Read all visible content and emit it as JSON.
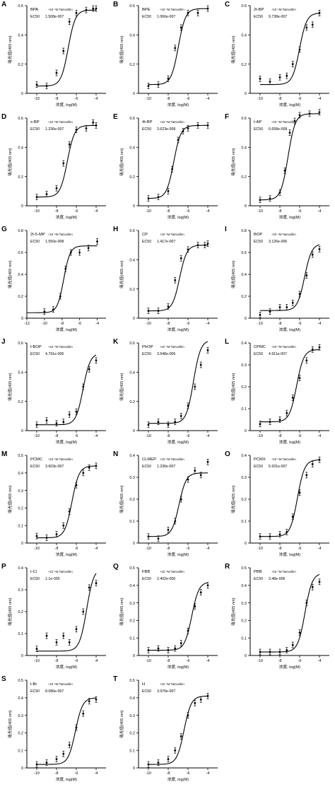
{
  "panel_tag": "+10⁻⁵M Tamoxifen",
  "ylabel": "吸光值(405 nm)",
  "xlabel": "浓度, log(M)",
  "ec50_label": "EC50",
  "chart_data": [
    {
      "id": "A",
      "type": "scatter",
      "name": "BPA",
      "ec50": "1.508e-007",
      "xlim": [
        -11,
        -3
      ],
      "ylim": [
        0,
        0.6
      ],
      "xticks": [
        -10,
        -8,
        -6,
        -4
      ],
      "yticks": [
        0,
        0.2,
        0.4,
        0.6
      ],
      "bottom": 0.05,
      "top": 0.57,
      "x": [
        -10,
        -9,
        -8,
        -7.3,
        -6.7,
        -6,
        -5,
        -4.3,
        -4
      ],
      "y": [
        0.06,
        0.05,
        0.14,
        0.29,
        0.49,
        0.55,
        0.57,
        0.58,
        0.58
      ]
    },
    {
      "id": "B",
      "type": "scatter",
      "name": "BPE",
      "ec50": "1.066e-007",
      "xlim": [
        -11,
        -3
      ],
      "ylim": [
        0,
        0.6
      ],
      "xticks": [
        -10,
        -8,
        -6,
        -4
      ],
      "yticks": [
        0,
        0.2,
        0.4,
        0.6
      ],
      "bottom": 0.06,
      "top": 0.58,
      "x": [
        -10,
        -9,
        -8,
        -7.3,
        -6.7,
        -6,
        -5,
        -4
      ],
      "y": [
        0.05,
        0.06,
        0.1,
        0.31,
        0.45,
        0.55,
        0.55,
        0.58
      ]
    },
    {
      "id": "C",
      "type": "scatter",
      "name": "2t-BP",
      "ec50": "9.738e-007",
      "xlim": [
        -11,
        -3
      ],
      "ylim": [
        0,
        0.6
      ],
      "xticks": [
        -10,
        -8,
        -6,
        -4
      ],
      "yticks": [
        0,
        0.2,
        0.4,
        0.6
      ],
      "bottom": 0.06,
      "top": 0.55,
      "x": [
        -10,
        -9,
        -8,
        -7.3,
        -6.7,
        -6,
        -5.3,
        -4.7,
        -4
      ],
      "y": [
        0.1,
        0.08,
        0.11,
        0.12,
        0.2,
        0.3,
        0.45,
        0.47,
        0.55
      ]
    },
    {
      "id": "D",
      "type": "scatter",
      "name": "s-BP",
      "ec50": "1.236e-007",
      "xlim": [
        -11,
        -3
      ],
      "ylim": [
        0,
        0.6
      ],
      "xticks": [
        -10,
        -8,
        -6,
        -4
      ],
      "yticks": [
        0,
        0.2,
        0.4,
        0.6
      ],
      "bottom": 0.06,
      "top": 0.55,
      "x": [
        -10,
        -9,
        -8,
        -7.3,
        -6.7,
        -6,
        -5,
        -4.3,
        -4
      ],
      "y": [
        0.06,
        0.08,
        0.12,
        0.29,
        0.42,
        0.52,
        0.53,
        0.57,
        0.55
      ]
    },
    {
      "id": "E",
      "type": "scatter",
      "name": "4t-BP",
      "ec50": "3.623e-008",
      "xlim": [
        -11,
        -3
      ],
      "ylim": [
        0,
        0.6
      ],
      "xticks": [
        -10,
        -8,
        -6,
        -4
      ],
      "yticks": [
        0,
        0.2,
        0.4,
        0.6
      ],
      "bottom": 0.05,
      "top": 0.55,
      "x": [
        -10,
        -9,
        -8,
        -7.6,
        -7,
        -6.5,
        -6,
        -5,
        -4
      ],
      "y": [
        0.05,
        0.06,
        0.1,
        0.25,
        0.45,
        0.51,
        0.53,
        0.55,
        0.55
      ]
    },
    {
      "id": "F",
      "type": "scatter",
      "name": "t-AP",
      "ec50": "6.658e-008",
      "xlim": [
        -11,
        -3
      ],
      "ylim": [
        0,
        0.6
      ],
      "xticks": [
        -10,
        -8,
        -6,
        -4
      ],
      "yticks": [
        0,
        0.2,
        0.4,
        0.6
      ],
      "bottom": 0.04,
      "top": 0.63,
      "x": [
        -10,
        -9,
        -8,
        -7.5,
        -7,
        -6.5,
        -6,
        -5,
        -4
      ],
      "y": [
        0.04,
        0.05,
        0.09,
        0.24,
        0.5,
        0.58,
        0.62,
        0.63,
        0.64
      ]
    },
    {
      "id": "G",
      "type": "scatter",
      "name": "2t-5-MP",
      "ec50": "1.550e-008",
      "xlim": [
        -12,
        -3
      ],
      "ylim": [
        0,
        0.8
      ],
      "xticks": [
        -12,
        -10,
        -8,
        -6,
        -4
      ],
      "yticks": [
        0,
        0.2,
        0.4,
        0.6,
        0.8
      ],
      "bottom": 0.05,
      "top": 0.66,
      "x": [
        -10,
        -9,
        -8.2,
        -7.6,
        -7,
        -6,
        -5,
        -4
      ],
      "y": [
        0.06,
        0.08,
        0.2,
        0.45,
        0.6,
        0.6,
        0.64,
        0.7
      ]
    },
    {
      "id": "H",
      "type": "scatter",
      "name": "CP",
      "ec50": "1.417e-007",
      "xlim": [
        -11,
        -3
      ],
      "ylim": [
        0,
        0.6
      ],
      "xticks": [
        -10,
        -8,
        -6,
        -4
      ],
      "yticks": [
        0,
        0.2,
        0.4,
        0.6
      ],
      "bottom": 0.05,
      "top": 0.5,
      "x": [
        -10,
        -9,
        -8,
        -7.3,
        -6.7,
        -6,
        -5,
        -4.3,
        -4
      ],
      "y": [
        0.05,
        0.05,
        0.08,
        0.26,
        0.41,
        0.47,
        0.5,
        0.5,
        0.51
      ]
    },
    {
      "id": "I",
      "type": "scatter",
      "name": "BOP",
      "ec50": "3.126e-006",
      "xlim": [
        -11,
        -3
      ],
      "ylim": [
        0,
        0.8
      ],
      "xticks": [
        -10,
        -8,
        -6,
        -4
      ],
      "yticks": [
        0,
        0.2,
        0.4,
        0.6,
        0.8
      ],
      "bottom": 0.07,
      "top": 0.68,
      "x": [
        -10,
        -9,
        -8,
        -7.3,
        -6.7,
        -6,
        -5.3,
        -4.7,
        -4
      ],
      "y": [
        0.03,
        0.06,
        0.1,
        0.1,
        0.14,
        0.22,
        0.39,
        0.58,
        0.63
      ]
    },
    {
      "id": "J",
      "type": "scatter",
      "name": "t-BOP",
      "ec50": "4.791e-006",
      "xlim": [
        -11,
        -3
      ],
      "ylim": [
        0,
        0.6
      ],
      "xticks": [
        -10,
        -8,
        -6,
        -4
      ],
      "yticks": [
        0,
        0.2,
        0.4,
        0.6
      ],
      "bottom": 0.04,
      "top": 0.53,
      "x": [
        -10,
        -9,
        -8,
        -7.3,
        -6.7,
        -6,
        -5.3,
        -4.7,
        -4
      ],
      "y": [
        0.04,
        0.07,
        0.05,
        0.06,
        0.11,
        0.13,
        0.3,
        0.42,
        0.48
      ]
    },
    {
      "id": "K",
      "type": "scatter",
      "name": "PhOP",
      "ec50": "3.548e-006",
      "xlim": [
        -11,
        -3
      ],
      "ylim": [
        0,
        0.6
      ],
      "xticks": [
        -10,
        -8,
        -6,
        -4
      ],
      "yticks": [
        0,
        0.2,
        0.4,
        0.6
      ],
      "bottom": 0.05,
      "top": 0.62,
      "x": [
        -10,
        -9,
        -8,
        -7.3,
        -6.7,
        -6,
        -5.3,
        -4.7,
        -4
      ],
      "y": [
        0.04,
        0.06,
        0.04,
        0.06,
        0.1,
        0.17,
        0.3,
        0.45,
        0.55
      ]
    },
    {
      "id": "L",
      "type": "scatter",
      "name": "CPMC",
      "ec50": "4.911e-007",
      "xlim": [
        -11,
        -3
      ],
      "ylim": [
        0,
        0.4
      ],
      "xticks": [
        -10,
        -8,
        -6,
        -4
      ],
      "yticks": [
        0,
        0.1,
        0.2,
        0.3,
        0.4
      ],
      "bottom": 0.04,
      "top": 0.37,
      "x": [
        -10,
        -9,
        -8,
        -7.3,
        -6.7,
        -6,
        -5.3,
        -4.7,
        -4
      ],
      "y": [
        0.03,
        0.04,
        0.05,
        0.08,
        0.15,
        0.24,
        0.32,
        0.37,
        0.38
      ]
    },
    {
      "id": "M",
      "type": "scatter",
      "name": "PCMC",
      "ec50": "3.603e-007",
      "xlim": [
        -11,
        -3
      ],
      "ylim": [
        0,
        0.5
      ],
      "xticks": [
        -10,
        -8,
        -6,
        -4
      ],
      "yticks": [
        0,
        0.1,
        0.2,
        0.3,
        0.4,
        0.5
      ],
      "bottom": 0.03,
      "top": 0.44,
      "x": [
        -10,
        -9,
        -8,
        -7.3,
        -6.7,
        -6,
        -5.3,
        -4.7,
        -4
      ],
      "y": [
        0.04,
        0.03,
        0.05,
        0.1,
        0.18,
        0.33,
        0.4,
        0.43,
        0.44
      ]
    },
    {
      "id": "N",
      "type": "scatter",
      "name": "CLMEP",
      "ec50": "1.236e-007",
      "xlim": [
        -11,
        -3
      ],
      "ylim": [
        0,
        0.4
      ],
      "xticks": [
        -10,
        -8,
        -6,
        -4
      ],
      "yticks": [
        0,
        0.1,
        0.2,
        0.3,
        0.4
      ],
      "bottom": 0.03,
      "top": 0.32,
      "x": [
        -10,
        -9,
        -8,
        -7.3,
        -6.7,
        -6,
        -5.3,
        -4.7,
        -4
      ],
      "y": [
        0.03,
        0.02,
        0.06,
        0.1,
        0.2,
        0.29,
        0.33,
        0.31,
        0.37
      ]
    },
    {
      "id": "O",
      "type": "scatter",
      "name": "PCMX",
      "ec50": "5.931e-007",
      "xlim": [
        -11,
        -3
      ],
      "ylim": [
        0,
        0.4
      ],
      "xticks": [
        -10,
        -8,
        -6,
        -4
      ],
      "yticks": [
        0,
        0.1,
        0.2,
        0.3,
        0.4
      ],
      "bottom": 0.03,
      "top": 0.38,
      "x": [
        -10,
        -9,
        -8,
        -7.3,
        -6.7,
        -6,
        -5.3,
        -4.7,
        -4
      ],
      "y": [
        0.03,
        0.03,
        0.04,
        0.05,
        0.12,
        0.23,
        0.31,
        0.36,
        0.38
      ]
    },
    {
      "id": "P",
      "type": "scatter",
      "name": "t-Cl",
      "ec50": "1.1e-005",
      "xlim": [
        -11,
        -3
      ],
      "ylim": [
        0,
        0.4
      ],
      "xticks": [
        -10,
        -8,
        -6,
        -4
      ],
      "yticks": [
        0,
        0.1,
        0.2,
        0.3,
        0.4
      ],
      "bottom": 0.02,
      "top": 0.4,
      "x": [
        -10,
        -9,
        -8,
        -7.3,
        -6.7,
        -6,
        -5.3,
        -4.7,
        -4
      ],
      "y": [
        0.03,
        0.09,
        0.06,
        0.09,
        0.06,
        0.12,
        0.2,
        0.31,
        0.33
      ]
    },
    {
      "id": "Q",
      "type": "scatter",
      "name": "FBB",
      "ec50": "2.402e-006",
      "xlim": [
        -11,
        -3
      ],
      "ylim": [
        0,
        0.5
      ],
      "xticks": [
        -10,
        -8,
        -6,
        -4
      ],
      "yticks": [
        0,
        0.1,
        0.2,
        0.3,
        0.4,
        0.5
      ],
      "bottom": 0.03,
      "top": 0.42,
      "x": [
        -10,
        -9,
        -8,
        -7.3,
        -6.7,
        -6,
        -5.3,
        -4.7,
        -4
      ],
      "y": [
        0.03,
        0.04,
        0.03,
        0.04,
        0.07,
        0.14,
        0.28,
        0.36,
        0.4
      ]
    },
    {
      "id": "R",
      "type": "scatter",
      "name": "PBB",
      "ec50": "3.48e-006",
      "xlim": [
        -11,
        -3
      ],
      "ylim": [
        0,
        0.5
      ],
      "xticks": [
        -10,
        -8,
        -6,
        -4
      ],
      "yticks": [
        0,
        0.1,
        0.2,
        0.3,
        0.4,
        0.5
      ],
      "bottom": 0.02,
      "top": 0.47,
      "x": [
        -10,
        -9,
        -8,
        -7.3,
        -6.7,
        -6,
        -5.3,
        -4.7,
        -4
      ],
      "y": [
        0.02,
        0.02,
        0.02,
        0.03,
        0.06,
        0.13,
        0.3,
        0.39,
        0.42
      ]
    },
    {
      "id": "S",
      "type": "scatter",
      "name": "t-Br",
      "ec50": "8.086e-007",
      "xlim": [
        -11,
        -3
      ],
      "ylim": [
        0,
        0.5
      ],
      "xticks": [
        -10,
        -8,
        -6,
        -4
      ],
      "yticks": [
        0,
        0.1,
        0.2,
        0.3,
        0.4,
        0.5
      ],
      "bottom": 0.02,
      "top": 0.4,
      "x": [
        -10,
        -9,
        -8,
        -7.3,
        -6.7,
        -6,
        -5.3,
        -4.7,
        -4
      ],
      "y": [
        0.02,
        0.03,
        0.05,
        0.08,
        0.13,
        0.23,
        0.31,
        0.38,
        0.39
      ]
    },
    {
      "id": "T",
      "type": "scatter",
      "name": "H",
      "ec50": "3.976e-007",
      "xlim": [
        -11,
        -3
      ],
      "ylim": [
        0,
        0.5
      ],
      "xticks": [
        -10,
        -8,
        -6,
        -4
      ],
      "yticks": [
        0,
        0.1,
        0.2,
        0.3,
        0.4,
        0.5
      ],
      "bottom": 0.02,
      "top": 0.41,
      "x": [
        -10,
        -9,
        -8,
        -7.3,
        -6.7,
        -6,
        -5.3,
        -4.7,
        -4
      ],
      "y": [
        0.02,
        0.03,
        0.05,
        0.1,
        0.18,
        0.3,
        0.37,
        0.39,
        0.41
      ]
    }
  ]
}
